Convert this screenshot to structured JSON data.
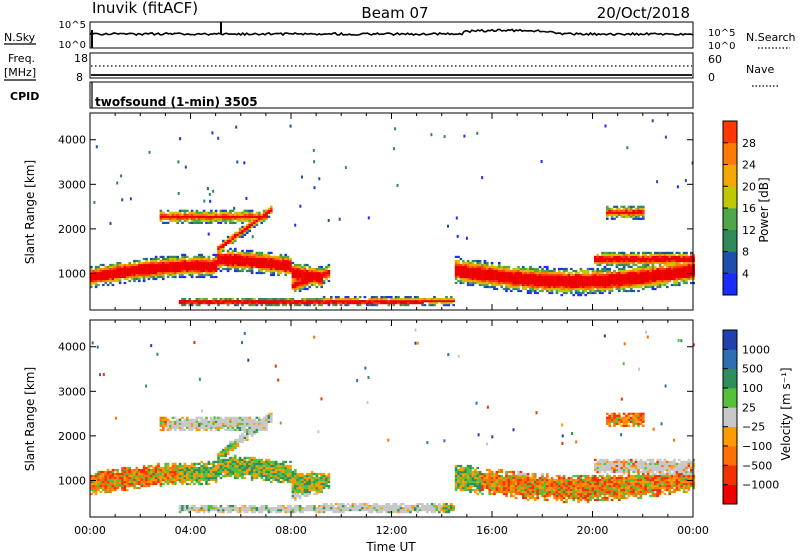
{
  "header": {
    "station": "Inuvik (fitACF)",
    "beam": "Beam 07",
    "date": "20/Oct/2018"
  },
  "noise_panel": {
    "left_label": "N.Sky",
    "left_ticks": [
      "10^5",
      "10^0"
    ],
    "right_ticks": [
      "10^5",
      "10^0"
    ],
    "right_label": "N.Search"
  },
  "freq_panel": {
    "left_label_1": "Freq.",
    "left_label_2": "[MHz]",
    "left_ticks": [
      "18",
      "8"
    ],
    "right_ticks": [
      "60",
      "0"
    ],
    "right_label": "Nave"
  },
  "cpid_panel": {
    "label": "CPID",
    "value": "twofsound (1-min) 3505"
  },
  "colors": {
    "power_scale": [
      "#1a2cff",
      "#1e4faa",
      "#2e8a58",
      "#4ea84a",
      "#c0c800",
      "#f2a800",
      "#ff7a00",
      "#ff3a00",
      "#ee0000"
    ],
    "velocity_scale": [
      "#2040b0",
      "#2d6fb0",
      "#2f8f5a",
      "#55c03a",
      "#c8c8c8",
      "#ff9a00",
      "#ff7000",
      "#f23000",
      "#ee0000"
    ]
  },
  "chart_data": [
    {
      "type": "heatmap",
      "name": "power",
      "ylabel": "Slant Range [km]",
      "ylim": [
        180,
        4600
      ],
      "yticks": [
        "1000",
        "2000",
        "3000",
        "4000"
      ],
      "xlim_hours": [
        0,
        24
      ],
      "colorbar": {
        "label": "Power [dB]",
        "range": [
          0,
          32
        ],
        "ticks": [
          "4",
          "8",
          "12",
          "16",
          "20",
          "24",
          "28"
        ]
      }
    },
    {
      "type": "heatmap",
      "name": "velocity",
      "ylabel": "Slant Range [km]",
      "ylim": [
        180,
        4600
      ],
      "yticks": [
        "1000",
        "2000",
        "3000",
        "4000"
      ],
      "xlim_hours": [
        0,
        24
      ],
      "xticks": [
        "00:00",
        "04:00",
        "08:00",
        "12:00",
        "16:00",
        "20:00",
        "00:00"
      ],
      "xlabel": "Time UT",
      "colorbar": {
        "label": "Velocity [m s⁻¹]",
        "ticks": [
          "1000",
          "500",
          "100",
          "25",
          "−25",
          "−100",
          "−500",
          "−1000"
        ]
      }
    }
  ]
}
